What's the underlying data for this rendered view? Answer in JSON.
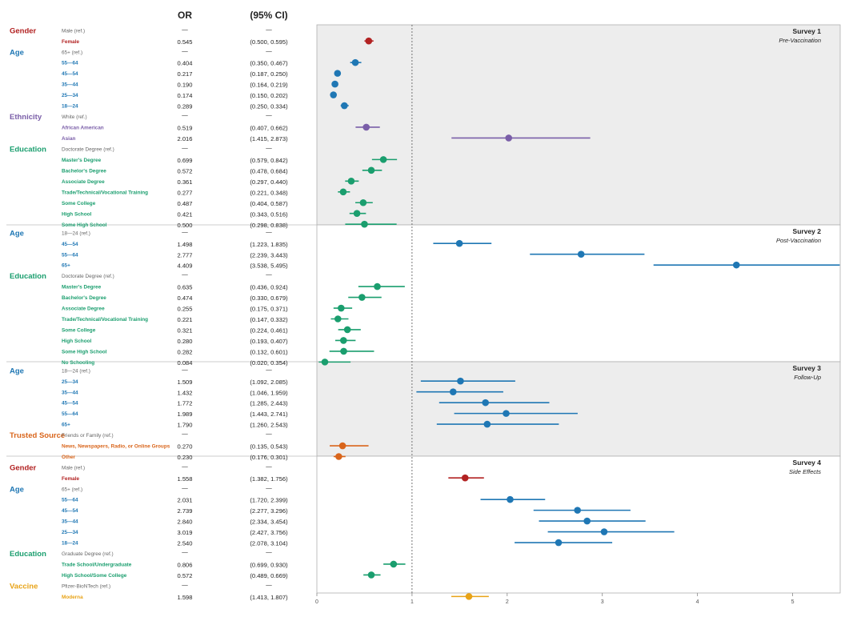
{
  "colors": {
    "Gender": "#b22222",
    "Age": "#1f77b4",
    "Ethnicity": "#7a5ea8",
    "Education": "#1a9e6e",
    "Trusted Source": "#d9651b",
    "Vaccine": "#e8a317",
    "ref": "#666666",
    "text": "#222222",
    "panel_shaded": "#ededed",
    "panel_plain": "#ffffff",
    "panel_border": "#b0b0b0"
  },
  "chart_data": {
    "type": "forest",
    "headers": {
      "or": "OR",
      "ci": "(95% CI)"
    },
    "x_axis": {
      "min": 0,
      "max": 5.5,
      "ticks": [
        0,
        1,
        2,
        3,
        4,
        5
      ],
      "reference_line": 1
    },
    "ref_dash": "—",
    "panels": [
      {
        "title": "Survey 1",
        "subtitle": "Pre-Vaccination",
        "shaded": true,
        "groups": [
          {
            "label": "Gender",
            "rows": [
              {
                "label": "Male (ref.)",
                "ref": true
              },
              {
                "label": "Female",
                "or": 0.545,
                "lo": 0.5,
                "hi": 0.595,
                "or_text": "0.545",
                "ci_text": "(0.500, 0.595)"
              }
            ]
          },
          {
            "label": "Age",
            "rows": [
              {
                "label": "65+ (ref.)",
                "ref": true
              },
              {
                "label": "55—64",
                "or": 0.404,
                "lo": 0.35,
                "hi": 0.467,
                "or_text": "0.404",
                "ci_text": "(0.350, 0.467)"
              },
              {
                "label": "45—54",
                "or": 0.217,
                "lo": 0.187,
                "hi": 0.25,
                "or_text": "0.217",
                "ci_text": "(0.187, 0.250)"
              },
              {
                "label": "35—44",
                "or": 0.19,
                "lo": 0.164,
                "hi": 0.219,
                "or_text": "0.190",
                "ci_text": "(0.164, 0.219)"
              },
              {
                "label": "25—34",
                "or": 0.174,
                "lo": 0.15,
                "hi": 0.202,
                "or_text": "0.174",
                "ci_text": "(0.150, 0.202)"
              },
              {
                "label": "18—24",
                "or": 0.289,
                "lo": 0.25,
                "hi": 0.334,
                "or_text": "0.289",
                "ci_text": "(0.250, 0.334)"
              }
            ]
          },
          {
            "label": "Ethnicity",
            "rows": [
              {
                "label": "White (ref.)",
                "ref": true
              },
              {
                "label": "African American",
                "or": 0.519,
                "lo": 0.407,
                "hi": 0.662,
                "or_text": "0.519",
                "ci_text": "(0.407, 0.662)"
              },
              {
                "label": "Asian",
                "or": 2.016,
                "lo": 1.415,
                "hi": 2.873,
                "or_text": "2.016",
                "ci_text": "(1.415, 2.873)"
              }
            ]
          },
          {
            "label": "Education",
            "rows": [
              {
                "label": "Doctorate Degree (ref.)",
                "ref": true
              },
              {
                "label": "Master's Degree",
                "or": 0.699,
                "lo": 0.579,
                "hi": 0.842,
                "or_text": "0.699",
                "ci_text": "(0.579, 0.842)"
              },
              {
                "label": "Bachelor's Degree",
                "or": 0.572,
                "lo": 0.478,
                "hi": 0.684,
                "or_text": "0.572",
                "ci_text": "(0.478, 0.684)"
              },
              {
                "label": "Associate Degree",
                "or": 0.361,
                "lo": 0.297,
                "hi": 0.44,
                "or_text": "0.361",
                "ci_text": "(0.297, 0.440)"
              },
              {
                "label": "Trade/Technical/Vocational Training",
                "or": 0.277,
                "lo": 0.221,
                "hi": 0.348,
                "or_text": "0.277",
                "ci_text": "(0.221, 0.348)"
              },
              {
                "label": "Some College",
                "or": 0.487,
                "lo": 0.404,
                "hi": 0.587,
                "or_text": "0.487",
                "ci_text": "(0.404, 0.587)"
              },
              {
                "label": "High School",
                "or": 0.421,
                "lo": 0.343,
                "hi": 0.516,
                "or_text": "0.421",
                "ci_text": "(0.343, 0.516)"
              },
              {
                "label": "Some High School",
                "or": 0.5,
                "lo": 0.298,
                "hi": 0.838,
                "or_text": "0.500",
                "ci_text": "(0.298, 0.838)"
              }
            ]
          }
        ]
      },
      {
        "title": "Survey 2",
        "subtitle": "Post-Vaccination",
        "shaded": false,
        "groups": [
          {
            "label": "Age",
            "rows": [
              {
                "label": "18—24 (ref.)",
                "ref": true
              },
              {
                "label": "45—54",
                "or": 1.498,
                "lo": 1.223,
                "hi": 1.835,
                "or_text": "1.498",
                "ci_text": "(1.223, 1.835)"
              },
              {
                "label": "55—64",
                "or": 2.777,
                "lo": 2.239,
                "hi": 3.443,
                "or_text": "2.777",
                "ci_text": "(2.239, 3.443)"
              },
              {
                "label": "65+",
                "or": 4.409,
                "lo": 3.538,
                "hi": 5.495,
                "or_text": "4.409",
                "ci_text": "(3.538, 5.495)"
              }
            ]
          },
          {
            "label": "Education",
            "rows": [
              {
                "label": "Doctorate Degree (ref.)",
                "ref": true
              },
              {
                "label": "Master's Degree",
                "or": 0.635,
                "lo": 0.436,
                "hi": 0.924,
                "or_text": "0.635",
                "ci_text": "(0.436, 0.924)"
              },
              {
                "label": "Bachelor's Degree",
                "or": 0.474,
                "lo": 0.33,
                "hi": 0.679,
                "or_text": "0.474",
                "ci_text": "(0.330, 0.679)"
              },
              {
                "label": "Associate Degree",
                "or": 0.255,
                "lo": 0.175,
                "hi": 0.371,
                "or_text": "0.255",
                "ci_text": "(0.175, 0.371)"
              },
              {
                "label": "Trade/Technical/Vocational Training",
                "or": 0.221,
                "lo": 0.147,
                "hi": 0.332,
                "or_text": "0.221",
                "ci_text": "(0.147, 0.332)"
              },
              {
                "label": "Some College",
                "or": 0.321,
                "lo": 0.224,
                "hi": 0.461,
                "or_text": "0.321",
                "ci_text": "(0.224, 0.461)"
              },
              {
                "label": "High School",
                "or": 0.28,
                "lo": 0.193,
                "hi": 0.407,
                "or_text": "0.280",
                "ci_text": "(0.193, 0.407)"
              },
              {
                "label": "Some High School",
                "or": 0.282,
                "lo": 0.132,
                "hi": 0.601,
                "or_text": "0.282",
                "ci_text": "(0.132, 0.601)"
              },
              {
                "label": "No Schooling",
                "or": 0.084,
                "lo": 0.02,
                "hi": 0.354,
                "or_text": "0.084",
                "ci_text": "(0.020, 0.354)"
              }
            ]
          }
        ]
      },
      {
        "title": "Survey 3",
        "subtitle": "Follow-Up",
        "shaded": true,
        "groups": [
          {
            "label": "Age",
            "rows": [
              {
                "label": "18—24 (ref.)",
                "ref": true
              },
              {
                "label": "25—34",
                "or": 1.509,
                "lo": 1.092,
                "hi": 2.085,
                "or_text": "1.509",
                "ci_text": "(1.092, 2.085)"
              },
              {
                "label": "35—44",
                "or": 1.432,
                "lo": 1.046,
                "hi": 1.959,
                "or_text": "1.432",
                "ci_text": "(1.046, 1.959)"
              },
              {
                "label": "45—54",
                "or": 1.772,
                "lo": 1.285,
                "hi": 2.443,
                "or_text": "1.772",
                "ci_text": "(1.285, 2.443)"
              },
              {
                "label": "55—64",
                "or": 1.989,
                "lo": 1.443,
                "hi": 2.741,
                "or_text": "1.989",
                "ci_text": "(1.443, 2.741)"
              },
              {
                "label": "65+",
                "or": 1.79,
                "lo": 1.26,
                "hi": 2.543,
                "or_text": "1.790",
                "ci_text": "(1.260, 2.543)"
              }
            ]
          },
          {
            "label": "Trusted Source",
            "rows": [
              {
                "label": "Friends or Family (ref.)",
                "ref": true
              },
              {
                "label": "News, Newspapers, Radio, or Online Groups",
                "or": 0.27,
                "lo": 0.135,
                "hi": 0.543,
                "or_text": "0.270",
                "ci_text": "(0.135, 0.543)"
              },
              {
                "label": "Other",
                "or": 0.23,
                "lo": 0.176,
                "hi": 0.301,
                "or_text": "0.230",
                "ci_text": "(0.176, 0.301)"
              }
            ]
          }
        ]
      },
      {
        "title": "Survey 4",
        "subtitle": "Side Effects",
        "shaded": false,
        "groups": [
          {
            "label": "Gender",
            "rows": [
              {
                "label": "Male (ref.)",
                "ref": true
              },
              {
                "label": "Female",
                "or": 1.558,
                "lo": 1.382,
                "hi": 1.756,
                "or_text": "1.558",
                "ci_text": "(1.382, 1.756)"
              }
            ]
          },
          {
            "label": "Age",
            "rows": [
              {
                "label": "65+ (ref.)",
                "ref": true
              },
              {
                "label": "55—64",
                "or": 2.031,
                "lo": 1.72,
                "hi": 2.399,
                "or_text": "2.031",
                "ci_text": "(1.720, 2.399)"
              },
              {
                "label": "45—54",
                "or": 2.739,
                "lo": 2.277,
                "hi": 3.296,
                "or_text": "2.739",
                "ci_text": "(2.277, 3.296)"
              },
              {
                "label": "35—44",
                "or": 2.84,
                "lo": 2.334,
                "hi": 3.454,
                "or_text": "2.840",
                "ci_text": "(2.334, 3.454)"
              },
              {
                "label": "25—34",
                "or": 3.019,
                "lo": 2.427,
                "hi": 3.756,
                "or_text": "3.019",
                "ci_text": "(2.427, 3.756)"
              },
              {
                "label": "18—24",
                "or": 2.54,
                "lo": 2.078,
                "hi": 3.104,
                "or_text": "2.540",
                "ci_text": "(2.078, 3.104)"
              }
            ]
          },
          {
            "label": "Education",
            "rows": [
              {
                "label": "Graduate Degree (ref.)",
                "ref": true
              },
              {
                "label": "Trade School/Undergraduate",
                "or": 0.806,
                "lo": 0.699,
                "hi": 0.93,
                "or_text": "0.806",
                "ci_text": "(0.699, 0.930)"
              },
              {
                "label": "High School/Some College",
                "or": 0.572,
                "lo": 0.489,
                "hi": 0.669,
                "or_text": "0.572",
                "ci_text": "(0.489, 0.669)"
              }
            ]
          },
          {
            "label": "Vaccine",
            "rows": [
              {
                "label": "Pfizer-BioNTech (ref.)",
                "ref": true
              },
              {
                "label": "Moderna",
                "or": 1.598,
                "lo": 1.413,
                "hi": 1.807,
                "or_text": "1.598",
                "ci_text": "(1.413, 1.807)"
              }
            ]
          }
        ]
      }
    ]
  }
}
